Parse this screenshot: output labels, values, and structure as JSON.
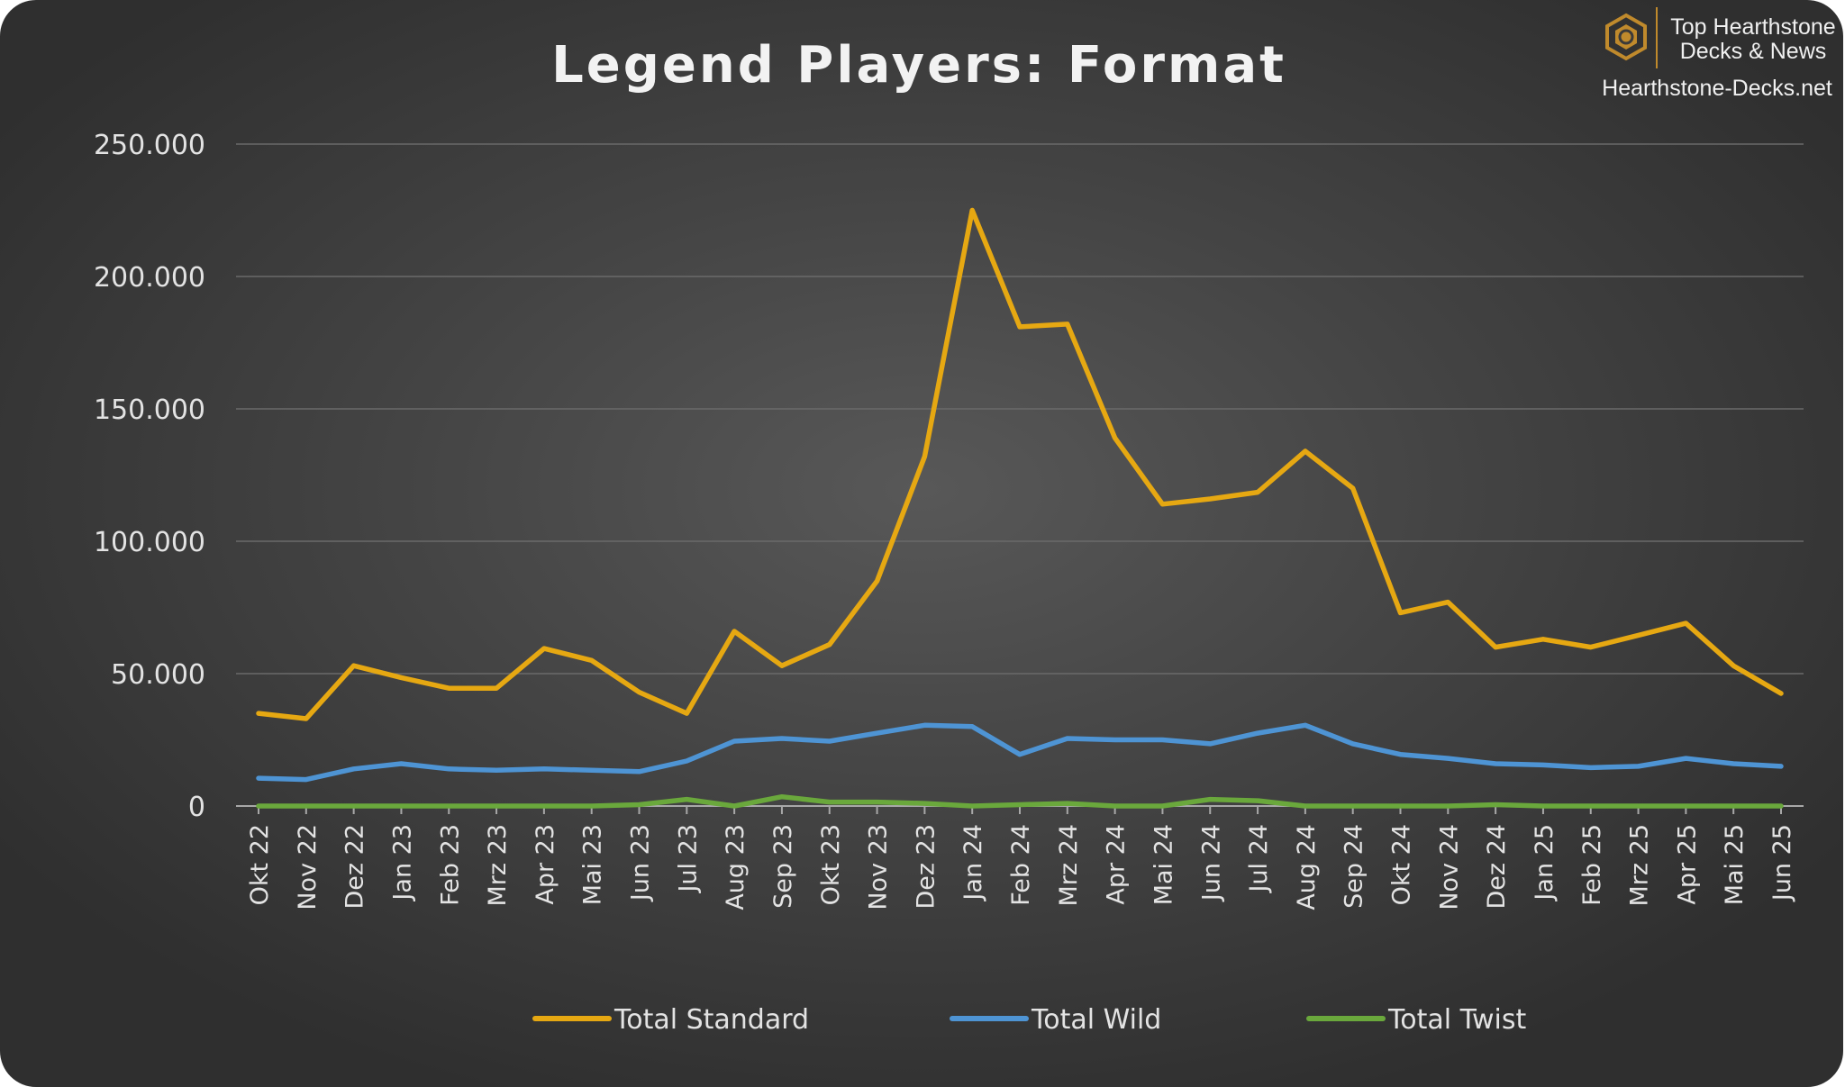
{
  "branding": {
    "line1": "Top Hearthstone",
    "line2": "Decks & News",
    "site": "Hearthstone-Decks.net",
    "logo_icon": "hearthstone-logo-icon",
    "logo_color": "#c08a2c"
  },
  "chart_data": {
    "type": "line",
    "title": "Legend Players: Format",
    "xlabel": "",
    "ylabel": "",
    "ylim": [
      0,
      250000
    ],
    "yticks": [
      0,
      50000,
      100000,
      150000,
      200000,
      250000
    ],
    "ytick_labels": [
      "0",
      "50.000",
      "100.000",
      "150.000",
      "200.000",
      "250.000"
    ],
    "grid": true,
    "legend_position": "bottom",
    "categories": [
      "Okt 22",
      "Nov 22",
      "Dez 22",
      "Jan 23",
      "Feb 23",
      "Mrz 23",
      "Apr 23",
      "Mai 23",
      "Jun 23",
      "Jul 23",
      "Aug 23",
      "Sep 23",
      "Okt 23",
      "Nov 23",
      "Dez 23",
      "Jan 24",
      "Feb 24",
      "Mrz 24",
      "Apr 24",
      "Mai 24",
      "Jun 24",
      "Jul 24",
      "Aug 24",
      "Sep 24",
      "Okt 24",
      "Nov 24",
      "Dez 24",
      "Jan 25",
      "Feb 25",
      "Mrz 25",
      "Apr 25",
      "Mai 25",
      "Jun 25"
    ],
    "series": [
      {
        "name": "Total Standard",
        "color": "#e6a812",
        "values": [
          35000,
          33000,
          53000,
          48500,
          44500,
          44500,
          59500,
          55000,
          43000,
          35000,
          66000,
          53000,
          61000,
          85000,
          132000,
          225000,
          181000,
          182000,
          139000,
          114000,
          116000,
          118500,
          134000,
          120000,
          73000,
          77000,
          60000,
          63000,
          60000,
          64500,
          69000,
          53000,
          42500
        ]
      },
      {
        "name": "Total Wild",
        "color": "#4e94d4",
        "values": [
          10500,
          10000,
          14000,
          16000,
          14000,
          13500,
          14000,
          13500,
          13000,
          17000,
          24500,
          25500,
          24500,
          27500,
          30500,
          30000,
          19500,
          25500,
          25000,
          25000,
          23500,
          27500,
          30500,
          23500,
          19500,
          18000,
          16000,
          15500,
          14500,
          15000,
          18000,
          16000,
          15000
        ]
      },
      {
        "name": "Total Twist",
        "color": "#6aa83c",
        "values": [
          0,
          0,
          0,
          0,
          0,
          0,
          0,
          0,
          500,
          2500,
          0,
          3500,
          1500,
          1500,
          1000,
          0,
          500,
          1000,
          0,
          0,
          2500,
          2000,
          0,
          0,
          0,
          0,
          500,
          0,
          0,
          0,
          0,
          0,
          0
        ]
      }
    ]
  }
}
